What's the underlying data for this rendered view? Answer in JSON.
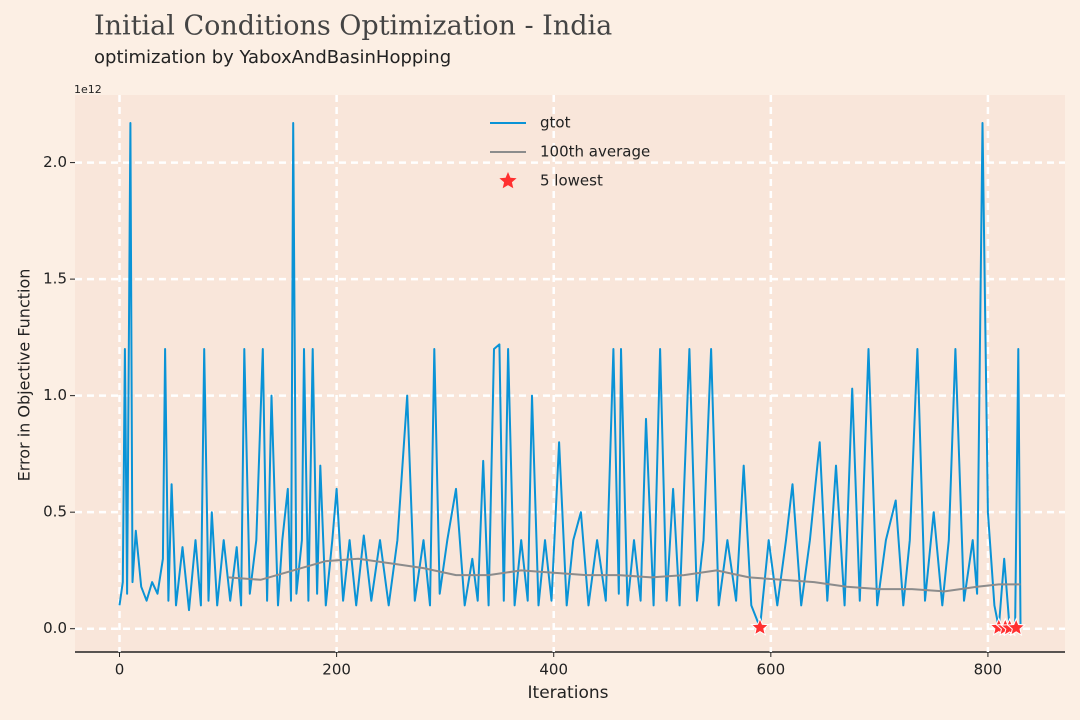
{
  "chart_data": {
    "type": "line",
    "title": "Initial Conditions Optimization - India",
    "subtitle": "optimization by YaboxAndBasinHopping",
    "xlabel": "Iterations",
    "ylabel": "Error in Objective Function",
    "y_offset_label": "1e12",
    "xlim": [
      -41,
      871
    ],
    "ylim": [
      -0.1,
      2.29
    ],
    "xticks": [
      0,
      200,
      400,
      600,
      800
    ],
    "yticks": [
      {
        "value": 0,
        "label": "0.0"
      },
      0.5,
      {
        "value": 1,
        "label": "1.0"
      },
      1.5,
      {
        "value": 2,
        "label": "2.0"
      }
    ],
    "grid": true,
    "legend": "upper center",
    "series": [
      {
        "name": "gtot",
        "color": "#0a93d6",
        "x": [
          0,
          3,
          5,
          7,
          10,
          12,
          15,
          20,
          25,
          30,
          35,
          40,
          42,
          45,
          48,
          52,
          58,
          64,
          70,
          75,
          78,
          82,
          85,
          90,
          96,
          102,
          108,
          112,
          115,
          120,
          126,
          132,
          136,
          140,
          146,
          150,
          155,
          158,
          160,
          163,
          168,
          170,
          174,
          178,
          182,
          185,
          190,
          196,
          200,
          206,
          212,
          218,
          225,
          232,
          240,
          248,
          256,
          265,
          272,
          280,
          286,
          290,
          295,
          302,
          310,
          318,
          325,
          330,
          335,
          340,
          345,
          350,
          354,
          358,
          364,
          370,
          376,
          380,
          386,
          392,
          398,
          405,
          412,
          418,
          425,
          432,
          440,
          448,
          455,
          460,
          462,
          468,
          474,
          480,
          485,
          492,
          498,
          504,
          510,
          516,
          525,
          532,
          538,
          545,
          552,
          560,
          568,
          575,
          582,
          590,
          598,
          606,
          614,
          620,
          628,
          636,
          645,
          652,
          660,
          668,
          675,
          682,
          690,
          698,
          706,
          715,
          722,
          728,
          735,
          742,
          750,
          758,
          764,
          770,
          778,
          786,
          790,
          795,
          800,
          806,
          810,
          815,
          820,
          825,
          828,
          830
        ],
        "values": [
          0.1,
          0.2,
          1.2,
          0.15,
          2.17,
          0.2,
          0.42,
          0.18,
          0.12,
          0.2,
          0.15,
          0.3,
          1.2,
          0.12,
          0.62,
          0.1,
          0.35,
          0.08,
          0.38,
          0.1,
          1.2,
          0.12,
          0.5,
          0.1,
          0.38,
          0.12,
          0.35,
          0.1,
          1.2,
          0.15,
          0.38,
          1.2,
          0.12,
          1.0,
          0.1,
          0.38,
          0.6,
          0.12,
          2.17,
          0.15,
          0.38,
          1.2,
          0.12,
          1.2,
          0.15,
          0.7,
          0.1,
          0.38,
          0.6,
          0.12,
          0.38,
          0.1,
          0.4,
          0.12,
          0.38,
          0.1,
          0.38,
          1.0,
          0.12,
          0.38,
          0.1,
          1.2,
          0.15,
          0.38,
          0.6,
          0.1,
          0.3,
          0.12,
          0.72,
          0.1,
          1.2,
          1.22,
          0.12,
          1.2,
          0.1,
          0.38,
          0.12,
          1.0,
          0.1,
          0.38,
          0.12,
          0.8,
          0.1,
          0.38,
          0.5,
          0.1,
          0.38,
          0.12,
          1.2,
          0.15,
          1.2,
          0.1,
          0.38,
          0.12,
          0.9,
          0.1,
          1.2,
          0.12,
          0.6,
          0.1,
          1.2,
          0.12,
          0.38,
          1.2,
          0.1,
          0.38,
          0.12,
          0.7,
          0.1,
          0.005,
          0.38,
          0.1,
          0.38,
          0.62,
          0.1,
          0.38,
          0.8,
          0.12,
          0.7,
          0.1,
          1.03,
          0.12,
          1.2,
          0.1,
          0.38,
          0.55,
          0.1,
          0.38,
          1.2,
          0.12,
          0.5,
          0.1,
          0.38,
          1.2,
          0.12,
          0.38,
          0.15,
          2.17,
          0.5,
          0.1,
          0.005,
          0.3,
          0.003,
          0.004,
          1.2,
          0.02
        ]
      },
      {
        "name": "100th average",
        "color": "#8c8c8c",
        "x": [
          100,
          130,
          160,
          190,
          220,
          250,
          280,
          310,
          340,
          370,
          400,
          430,
          460,
          490,
          520,
          550,
          580,
          610,
          640,
          670,
          700,
          730,
          760,
          790,
          810,
          830
        ],
        "values": [
          0.22,
          0.21,
          0.25,
          0.29,
          0.3,
          0.28,
          0.26,
          0.23,
          0.23,
          0.25,
          0.24,
          0.23,
          0.23,
          0.22,
          0.23,
          0.25,
          0.22,
          0.21,
          0.2,
          0.18,
          0.17,
          0.17,
          0.16,
          0.18,
          0.19,
          0.19
        ]
      },
      {
        "name": "5 lowest",
        "color": "#ff3030",
        "marker": "star",
        "x": [
          590,
          810,
          816,
          820,
          826
        ],
        "values": [
          0.005,
          0.005,
          0.004,
          0.003,
          0.004
        ]
      }
    ]
  }
}
